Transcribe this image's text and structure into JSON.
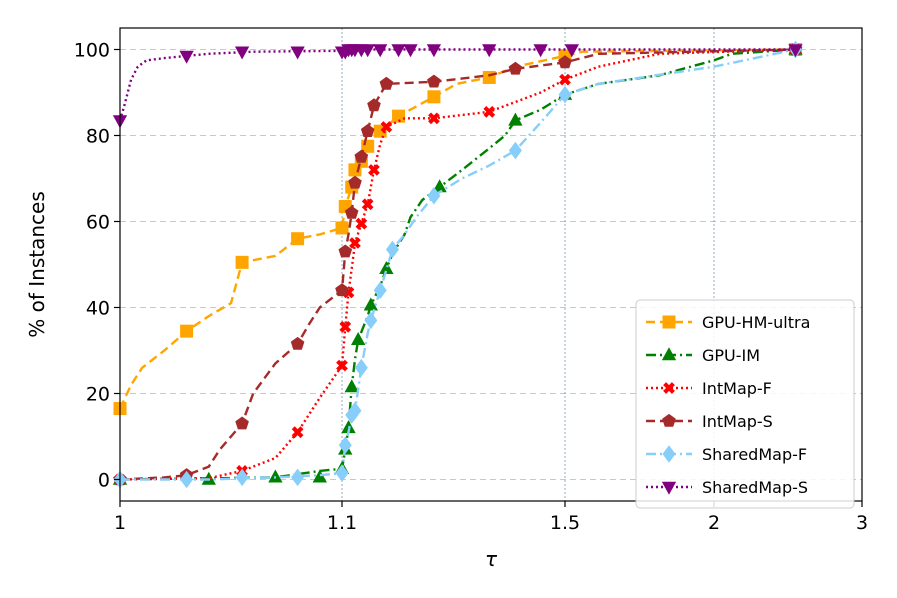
{
  "chart_data": {
    "type": "line",
    "title": "",
    "xlabel": "τ",
    "ylabel": "% of Instances",
    "x_scale": "performance-profile (segmented: 1-1.1, 1.1-1.5, 1.5-2, 2-3)",
    "xlim": [
      1,
      3
    ],
    "ylim": [
      -5,
      105
    ],
    "x_ticks": [
      1,
      1.1,
      1.5,
      2,
      3
    ],
    "x_tick_labels": [
      "1",
      "1.1",
      "1.5",
      "2",
      "3"
    ],
    "y_ticks": [
      0,
      20,
      40,
      60,
      80,
      100
    ],
    "y_tick_labels": [
      "0",
      "20",
      "40",
      "60",
      "80",
      "100"
    ],
    "grid": true,
    "legend_position": "lower-right",
    "series": [
      {
        "name": "GPU-HM-ultra",
        "color": "#FFA500",
        "dash": "dashed",
        "marker": "square",
        "points": [
          [
            1.0,
            16.5
          ],
          [
            1.005,
            22
          ],
          [
            1.01,
            26
          ],
          [
            1.02,
            30
          ],
          [
            1.03,
            34.5
          ],
          [
            1.04,
            38
          ],
          [
            1.05,
            41
          ],
          [
            1.055,
            50.5
          ],
          [
            1.06,
            51
          ],
          [
            1.07,
            52
          ],
          [
            1.08,
            56
          ],
          [
            1.09,
            57
          ],
          [
            1.1,
            58.5
          ],
          [
            1.105,
            63.5
          ],
          [
            1.115,
            68
          ],
          [
            1.12,
            72
          ],
          [
            1.13,
            74
          ],
          [
            1.14,
            77.5
          ],
          [
            1.16,
            81
          ],
          [
            1.19,
            84.5
          ],
          [
            1.25,
            89
          ],
          [
            1.29,
            92
          ],
          [
            1.35,
            93.5
          ],
          [
            1.4,
            96
          ],
          [
            1.5,
            98.5
          ],
          [
            1.55,
            99.5
          ],
          [
            2.5,
            100
          ]
        ],
        "markers": [
          [
            1.0,
            16.5
          ],
          [
            1.03,
            34.5
          ],
          [
            1.055,
            50.5
          ],
          [
            1.08,
            56
          ],
          [
            1.1,
            58.5
          ],
          [
            1.105,
            63.5
          ],
          [
            1.115,
            68
          ],
          [
            1.12,
            72
          ],
          [
            1.13,
            74
          ],
          [
            1.14,
            77.5
          ],
          [
            1.16,
            81
          ],
          [
            1.19,
            84.5
          ],
          [
            1.25,
            89
          ],
          [
            1.35,
            93.5
          ],
          [
            1.5,
            98.5
          ],
          [
            2.5,
            100
          ]
        ]
      },
      {
        "name": "GPU-IM",
        "color": "#008000",
        "dash": "dashdot",
        "marker": "triangle-up",
        "points": [
          [
            1.0,
            0
          ],
          [
            1.07,
            0.5
          ],
          [
            1.09,
            2
          ],
          [
            1.1,
            2.5
          ],
          [
            1.105,
            7
          ],
          [
            1.11,
            12
          ],
          [
            1.115,
            21.5
          ],
          [
            1.12,
            28
          ],
          [
            1.125,
            32.5
          ],
          [
            1.14,
            38
          ],
          [
            1.145,
            40.5
          ],
          [
            1.16,
            45
          ],
          [
            1.17,
            49
          ],
          [
            1.18,
            52.5
          ],
          [
            1.2,
            57
          ],
          [
            1.21,
            61
          ],
          [
            1.23,
            65
          ],
          [
            1.26,
            68
          ],
          [
            1.3,
            72
          ],
          [
            1.35,
            77
          ],
          [
            1.38,
            80
          ],
          [
            1.4,
            83.5
          ],
          [
            1.45,
            86
          ],
          [
            1.5,
            89.5
          ],
          [
            1.6,
            92
          ],
          [
            1.8,
            94
          ],
          [
            2.0,
            97.5
          ],
          [
            2.1,
            99
          ],
          [
            2.5,
            100
          ]
        ],
        "markers": [
          [
            1.0,
            0
          ],
          [
            1.04,
            0
          ],
          [
            1.07,
            0.5
          ],
          [
            1.09,
            0.5
          ],
          [
            1.1,
            2.5
          ],
          [
            1.105,
            7
          ],
          [
            1.11,
            12
          ],
          [
            1.115,
            21.5
          ],
          [
            1.125,
            32.5
          ],
          [
            1.145,
            40.5
          ],
          [
            1.17,
            49
          ],
          [
            1.26,
            68
          ],
          [
            1.4,
            83.5
          ],
          [
            1.5,
            89.5
          ],
          [
            2.5,
            100
          ]
        ]
      },
      {
        "name": "IntMap-F",
        "color": "#FF0000",
        "dash": "dotted",
        "marker": "x",
        "points": [
          [
            1.0,
            0
          ],
          [
            1.04,
            0.3
          ],
          [
            1.055,
            2
          ],
          [
            1.07,
            5
          ],
          [
            1.08,
            11
          ],
          [
            1.09,
            19
          ],
          [
            1.1,
            26.5
          ],
          [
            1.105,
            35.5
          ],
          [
            1.11,
            43.5
          ],
          [
            1.115,
            49
          ],
          [
            1.12,
            55
          ],
          [
            1.13,
            59.5
          ],
          [
            1.14,
            64
          ],
          [
            1.15,
            72
          ],
          [
            1.16,
            78
          ],
          [
            1.17,
            82
          ],
          [
            1.2,
            84
          ],
          [
            1.25,
            84
          ],
          [
            1.35,
            85.5
          ],
          [
            1.45,
            90
          ],
          [
            1.5,
            93
          ],
          [
            1.6,
            96
          ],
          [
            1.8,
            99
          ],
          [
            2.5,
            100
          ]
        ],
        "markers": [
          [
            1.0,
            0
          ],
          [
            1.055,
            2
          ],
          [
            1.08,
            11
          ],
          [
            1.1,
            26.5
          ],
          [
            1.105,
            35.5
          ],
          [
            1.11,
            43.5
          ],
          [
            1.12,
            55
          ],
          [
            1.13,
            59.5
          ],
          [
            1.14,
            64
          ],
          [
            1.15,
            72
          ],
          [
            1.17,
            82
          ],
          [
            1.25,
            84
          ],
          [
            1.35,
            85.5
          ],
          [
            1.5,
            93
          ],
          [
            2.5,
            100
          ]
        ]
      },
      {
        "name": "IntMap-S",
        "color": "#A52A2A",
        "dash": "dashed",
        "marker": "pentagon",
        "points": [
          [
            1.0,
            0
          ],
          [
            1.02,
            0.5
          ],
          [
            1.03,
            1
          ],
          [
            1.04,
            3
          ],
          [
            1.045,
            7
          ],
          [
            1.055,
            13
          ],
          [
            1.06,
            20
          ],
          [
            1.07,
            27
          ],
          [
            1.08,
            31.5
          ],
          [
            1.085,
            36
          ],
          [
            1.09,
            40
          ],
          [
            1.095,
            42
          ],
          [
            1.1,
            44
          ],
          [
            1.105,
            53
          ],
          [
            1.11,
            57
          ],
          [
            1.115,
            62
          ],
          [
            1.12,
            69
          ],
          [
            1.13,
            75
          ],
          [
            1.14,
            81
          ],
          [
            1.15,
            87
          ],
          [
            1.17,
            92
          ],
          [
            1.25,
            92.5
          ],
          [
            1.35,
            94
          ],
          [
            1.4,
            95.5
          ],
          [
            1.5,
            97
          ],
          [
            1.6,
            99
          ],
          [
            2.5,
            100
          ]
        ],
        "markers": [
          [
            1.0,
            0
          ],
          [
            1.03,
            1
          ],
          [
            1.055,
            13
          ],
          [
            1.08,
            31.5
          ],
          [
            1.1,
            44
          ],
          [
            1.105,
            53
          ],
          [
            1.115,
            62
          ],
          [
            1.12,
            69
          ],
          [
            1.13,
            75
          ],
          [
            1.14,
            81
          ],
          [
            1.15,
            87
          ],
          [
            1.17,
            92
          ],
          [
            1.25,
            92.5
          ],
          [
            1.4,
            95.5
          ],
          [
            1.5,
            97
          ],
          [
            2.5,
            100
          ]
        ]
      },
      {
        "name": "SharedMap-F",
        "color": "#87CEFA",
        "dash": "dashdot",
        "marker": "diamond",
        "points": [
          [
            1.0,
            0
          ],
          [
            1.04,
            0
          ],
          [
            1.07,
            0.5
          ],
          [
            1.09,
            1
          ],
          [
            1.1,
            1.5
          ],
          [
            1.105,
            8
          ],
          [
            1.11,
            11
          ],
          [
            1.115,
            15
          ],
          [
            1.12,
            16
          ],
          [
            1.13,
            26
          ],
          [
            1.14,
            34
          ],
          [
            1.145,
            37
          ],
          [
            1.16,
            44
          ],
          [
            1.18,
            53.5
          ],
          [
            1.2,
            57
          ],
          [
            1.22,
            61
          ],
          [
            1.25,
            66
          ],
          [
            1.3,
            70
          ],
          [
            1.35,
            73
          ],
          [
            1.4,
            76.5
          ],
          [
            1.45,
            83
          ],
          [
            1.5,
            89.5
          ],
          [
            1.6,
            92
          ],
          [
            2.0,
            96
          ],
          [
            2.5,
            100
          ]
        ],
        "markers": [
          [
            1.0,
            0
          ],
          [
            1.03,
            0
          ],
          [
            1.055,
            0.5
          ],
          [
            1.08,
            0.5
          ],
          [
            1.1,
            1.5
          ],
          [
            1.105,
            8
          ],
          [
            1.115,
            15
          ],
          [
            1.12,
            16
          ],
          [
            1.13,
            26
          ],
          [
            1.145,
            37
          ],
          [
            1.16,
            44
          ],
          [
            1.18,
            53.5
          ],
          [
            1.25,
            66
          ],
          [
            1.4,
            76.5
          ],
          [
            1.5,
            89.5
          ],
          [
            2.5,
            100
          ]
        ]
      },
      {
        "name": "SharedMap-S",
        "color": "#800080",
        "dash": "dotted",
        "marker": "triangle-down",
        "points": [
          [
            1.0,
            83.5
          ],
          [
            1.002,
            87
          ],
          [
            1.005,
            93
          ],
          [
            1.008,
            96
          ],
          [
            1.012,
            97.5
          ],
          [
            1.02,
            98
          ],
          [
            1.03,
            98.5
          ],
          [
            1.04,
            99
          ],
          [
            1.06,
            99.5
          ],
          [
            1.1,
            99.7
          ],
          [
            1.15,
            100
          ],
          [
            2.5,
            100
          ]
        ],
        "markers": [
          [
            1.0,
            83.5
          ],
          [
            1.03,
            98.5
          ],
          [
            1.055,
            99.5
          ],
          [
            1.08,
            99.5
          ],
          [
            1.1,
            99.5
          ],
          [
            1.105,
            99.5
          ],
          [
            1.11,
            100
          ],
          [
            1.115,
            100
          ],
          [
            1.12,
            100
          ],
          [
            1.13,
            100
          ],
          [
            1.14,
            100
          ],
          [
            1.16,
            100
          ],
          [
            1.19,
            100
          ],
          [
            1.21,
            100
          ],
          [
            1.25,
            100
          ],
          [
            1.35,
            100
          ],
          [
            1.45,
            100
          ],
          [
            1.52,
            100
          ],
          [
            2.5,
            100
          ]
        ]
      }
    ]
  }
}
